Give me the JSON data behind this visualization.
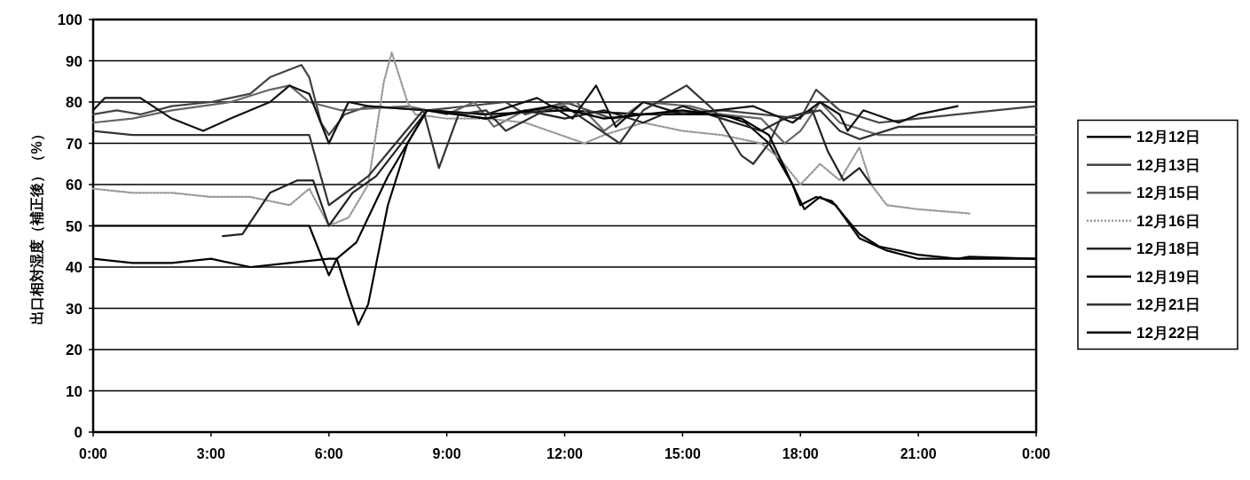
{
  "chart_data": {
    "type": "line",
    "ylabel": "出口相対湿度（補正後）（%）",
    "xlim": [
      0,
      24
    ],
    "xticks": [
      {
        "value": 0,
        "label": "0:00"
      },
      {
        "value": 3,
        "label": "3:00"
      },
      {
        "value": 6,
        "label": "6:00"
      },
      {
        "value": 9,
        "label": "9:00"
      },
      {
        "value": 12,
        "label": "12:00"
      },
      {
        "value": 15,
        "label": "15:00"
      },
      {
        "value": 18,
        "label": "18:00"
      },
      {
        "value": 21,
        "label": "21:00"
      },
      {
        "value": 24,
        "label": "0:00"
      }
    ],
    "ylim": [
      0,
      100
    ],
    "yticks": [
      0,
      10,
      20,
      30,
      40,
      50,
      60,
      70,
      80,
      90,
      100
    ],
    "grid": "y",
    "legend": "right",
    "series": [
      {
        "name": "12月12日",
        "color": "#000000",
        "x": [
          0,
          1,
          2,
          3,
          4,
          5,
          6,
          6.2,
          6.5,
          6.75,
          7,
          7.5,
          8,
          8.5,
          10,
          12,
          14,
          16,
          16.6,
          17.2,
          17.8,
          18,
          18.4,
          18.8,
          19.5,
          20,
          21,
          22,
          22.3,
          24
        ],
        "values": [
          42,
          41,
          41,
          42,
          40,
          41,
          42,
          42,
          33,
          26,
          31,
          55,
          70,
          78,
          77,
          78,
          77,
          77,
          75,
          70,
          60,
          55,
          57,
          56,
          48,
          45,
          43,
          42,
          42.5,
          42
        ]
      },
      {
        "name": "12月13日",
        "color": "#444444",
        "x": [
          0,
          0.6,
          1.2,
          2,
          3,
          4,
          4.5,
          5.3,
          5.5,
          5.8,
          6,
          6.4,
          7,
          8.5,
          10.5,
          11,
          12,
          13.2,
          14,
          16,
          17,
          18,
          18.4,
          19,
          20,
          22,
          24
        ],
        "values": [
          77,
          78,
          77,
          79,
          80,
          82,
          86,
          89,
          86,
          75,
          72,
          77,
          79,
          78,
          80,
          77,
          80,
          76,
          77,
          78,
          77,
          76,
          83,
          78,
          75,
          77,
          79
        ]
      },
      {
        "name": "12月15日",
        "color": "#666666",
        "x": [
          0,
          1,
          2,
          3.5,
          4.5,
          5,
          5.5,
          6.3,
          8,
          9,
          9.7,
          10.2,
          11,
          12.3,
          13,
          14,
          15.2,
          16,
          17,
          17.6,
          18,
          18.5,
          19,
          20,
          24
        ],
        "values": [
          75,
          76,
          78,
          80,
          83,
          84,
          80,
          78,
          79,
          77,
          80,
          74,
          78,
          80,
          73,
          80,
          79,
          77,
          76,
          70,
          73,
          80,
          75,
          72,
          72
        ]
      },
      {
        "name": "12月16日",
        "color": "#999999",
        "line_style": "dotted",
        "x": [
          0,
          1,
          2,
          3,
          4,
          5,
          5.5,
          6,
          6.5,
          7,
          7.4,
          7.6,
          8,
          8.2,
          9,
          10,
          11,
          12.5,
          13,
          14,
          15,
          16,
          17,
          17.5,
          18,
          18.5,
          19,
          19.5,
          19.8,
          20.2,
          21,
          22.3
        ],
        "values": [
          59,
          58,
          58,
          57,
          57,
          55,
          59,
          50,
          52,
          60,
          85,
          92,
          80,
          77,
          76,
          76,
          75,
          70,
          72,
          75,
          73,
          72,
          70,
          66,
          60,
          65,
          61,
          69,
          60,
          55,
          54,
          53
        ]
      },
      {
        "name": "12月18日",
        "color": "#222222",
        "x": [
          3.3,
          3.8,
          4.5,
          5.2,
          5.6,
          6,
          6.6,
          7.2,
          8.5,
          10,
          11,
          12,
          13,
          14,
          15,
          16,
          17,
          17.6,
          18.3,
          18.7,
          19.1,
          19.5,
          19.8,
          24
        ],
        "values": [
          47.5,
          48,
          58,
          61,
          61,
          50,
          58,
          62,
          78,
          76,
          78,
          76,
          78,
          75,
          79,
          76,
          73,
          76,
          78,
          68,
          61,
          64,
          60,
          60
        ]
      },
      {
        "name": "12月19日",
        "color": "#111111",
        "x": [
          0,
          0.3,
          1.2,
          2,
          2.8,
          3.5,
          4.5,
          5,
          5.5,
          6,
          6.5,
          7,
          8.5,
          10,
          11.3,
          12.2,
          12.8,
          13.3,
          14,
          15,
          16.8,
          17.8,
          18.5,
          19,
          19.2,
          19.6,
          20.5,
          21,
          22
        ],
        "values": [
          78,
          81,
          81,
          76,
          73,
          76,
          80,
          84,
          82,
          70,
          80,
          79,
          78,
          77,
          81,
          76,
          84,
          74,
          80,
          77,
          79,
          75,
          80,
          77,
          73,
          78,
          75,
          77,
          79
        ]
      },
      {
        "name": "12月21日",
        "color": "#333333",
        "x": [
          0,
          1,
          2,
          3,
          4,
          5,
          5.5,
          6,
          7,
          8.4,
          8.8,
          9.3,
          10,
          10.5,
          11.5,
          12,
          13.4,
          14,
          15.1,
          15.8,
          16.5,
          16.8,
          17.2,
          17.5,
          18.5,
          19,
          19.5,
          20.5,
          24
        ],
        "values": [
          73,
          72,
          72,
          72,
          72,
          72,
          72,
          55,
          62,
          78,
          64,
          77,
          78,
          73,
          78,
          79,
          70,
          78,
          84,
          78,
          67,
          65,
          70,
          76,
          78,
          73,
          71,
          74,
          74
        ]
      },
      {
        "name": "12月22日",
        "color": "#000000",
        "x": [
          0,
          1,
          2,
          3,
          4,
          5,
          5.5,
          6,
          6.2,
          6.7,
          7.5,
          8.5,
          10,
          11.7,
          13,
          15,
          16.5,
          17.2,
          17.7,
          18.1,
          18.5,
          18.9,
          19.5,
          20.2,
          21,
          24
        ],
        "values": [
          50,
          50,
          50,
          50,
          50,
          50,
          50,
          38,
          42,
          46,
          62,
          78,
          76,
          79,
          76,
          78,
          76,
          72,
          62,
          54,
          57,
          55,
          47,
          44,
          42,
          42
        ]
      }
    ]
  }
}
